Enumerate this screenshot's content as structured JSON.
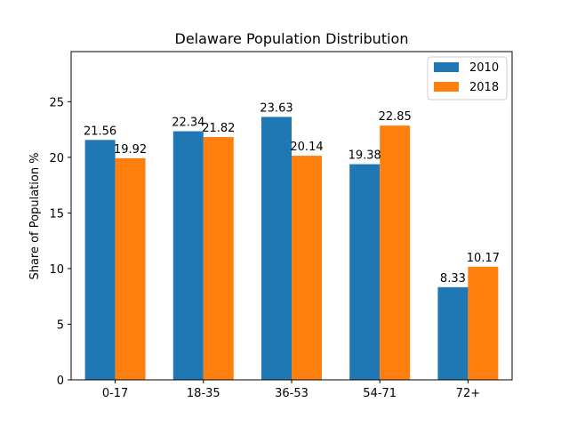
{
  "chart_data": {
    "type": "bar",
    "title": "Delaware Population Distribution",
    "xlabel": "",
    "ylabel": "Share of Population %",
    "categories": [
      "0-17",
      "18-35",
      "36-53",
      "54-71",
      "72+"
    ],
    "series": [
      {
        "name": "2010",
        "color": "#1f77b4",
        "values": [
          21.56,
          22.34,
          23.63,
          19.38,
          8.33
        ]
      },
      {
        "name": "2018",
        "color": "#ff7f0e",
        "values": [
          19.92,
          21.82,
          20.14,
          22.85,
          10.17
        ]
      }
    ],
    "data_labels": [
      [
        "21.56",
        "22.34",
        "23.63",
        "19.38",
        "8.33"
      ],
      [
        "19.92",
        "21.82",
        "20.14",
        "22.85",
        "10.17"
      ]
    ],
    "ylim": [
      0,
      29.5
    ],
    "yticks": [
      0,
      5,
      10,
      15,
      20,
      25
    ],
    "ytick_labels": [
      "0",
      "5",
      "10",
      "15",
      "20",
      "25"
    ],
    "grid": false,
    "legend_position": "top-right"
  }
}
